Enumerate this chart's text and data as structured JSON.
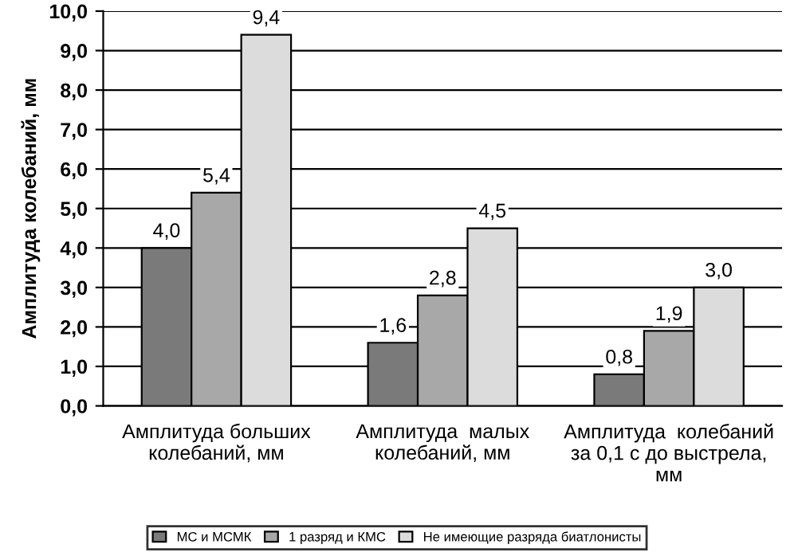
{
  "chart_data": {
    "type": "bar",
    "ylabel": "Амплитуда колебаний, мм",
    "categories": [
      "Амплитуда больших\nколебаний, мм",
      "Амплитуда  малых\nколебаний, мм",
      "Амплитуда  колебаний\nза 0,1 с до выстрела,\nмм"
    ],
    "series": [
      {
        "name": "МС и МСМК",
        "color": "#7a7a7a",
        "values": [
          4.0,
          1.6,
          0.8
        ]
      },
      {
        "name": "1 разряд и КМС",
        "color": "#a8a8a8",
        "values": [
          5.4,
          2.8,
          1.9
        ]
      },
      {
        "name": "Не имеющие разряда биатлонисты",
        "color": "#dcdcdc",
        "values": [
          9.4,
          4.5,
          3.0
        ]
      }
    ],
    "ylim": [
      0,
      10
    ],
    "yticks": [
      {
        "value": 0,
        "label": "0,0"
      },
      {
        "value": 1,
        "label": "1,0"
      },
      {
        "value": 2,
        "label": "2,0"
      },
      {
        "value": 3,
        "label": "3,0"
      },
      {
        "value": 4,
        "label": "4,0"
      },
      {
        "value": 5,
        "label": "5,0"
      },
      {
        "value": 6,
        "label": "6,0"
      },
      {
        "value": 7,
        "label": "7,0"
      },
      {
        "value": 8,
        "label": "8,0"
      },
      {
        "value": 9,
        "label": "9,0"
      },
      {
        "value": 10,
        "label": "10,0"
      }
    ],
    "grid": "y",
    "legend": "bottom",
    "value_labels": [
      [
        "4,0",
        "1,6",
        "0,8"
      ],
      [
        "5,4",
        "2,8",
        "1,9"
      ],
      [
        "9,4",
        "4,5",
        "3,0"
      ]
    ]
  }
}
